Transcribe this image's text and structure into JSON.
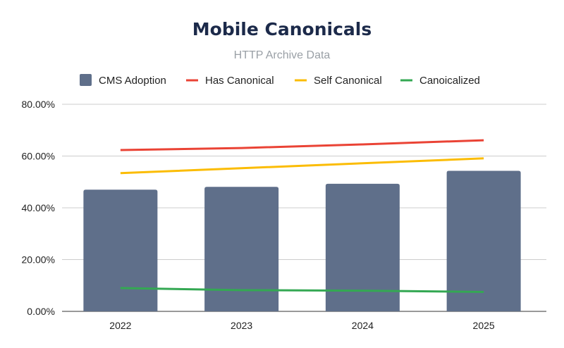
{
  "chart_data": {
    "type": "bar",
    "title": "Mobile Canonicals",
    "subtitle": "HTTP Archive Data",
    "categories": [
      "2022",
      "2023",
      "2024",
      "2025"
    ],
    "series": [
      {
        "name": "CMS Adoption",
        "kind": "bar",
        "color": "#5f6f8a",
        "values": [
          47.0,
          48.1,
          49.3,
          54.3
        ]
      },
      {
        "name": "Has Canonical",
        "kind": "line",
        "color": "#ea4335",
        "values": [
          62.3,
          63.1,
          64.5,
          66.1
        ]
      },
      {
        "name": "Self Canonical",
        "kind": "line",
        "color": "#fbbc04",
        "values": [
          53.4,
          55.3,
          57.2,
          59.1
        ]
      },
      {
        "name": "Canoicalized",
        "kind": "line",
        "color": "#34a853",
        "values": [
          9.0,
          8.2,
          8.0,
          7.5
        ]
      }
    ],
    "ylim": [
      0,
      80
    ],
    "yticks": [
      "0.00%",
      "20.00%",
      "40.00%",
      "60.00%",
      "80.00%"
    ],
    "grid": true,
    "legend": "top"
  }
}
